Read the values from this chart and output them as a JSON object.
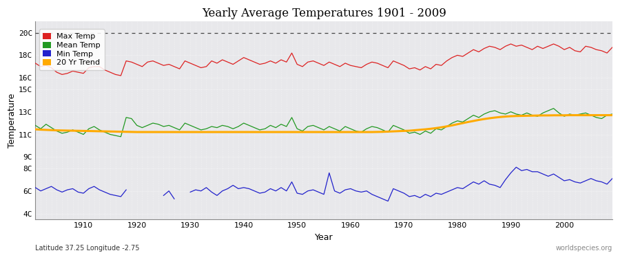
{
  "title": "Yearly Average Temperatures 1901 - 2009",
  "xlabel": "Year",
  "ylabel": "Temperature",
  "subtitle_left": "Latitude 37.25 Longitude -2.75",
  "subtitle_right": "worldspecies.org",
  "year_start": 1901,
  "year_end": 2009,
  "ytick_vals": [
    4,
    6,
    8,
    9,
    11,
    13,
    15,
    16,
    18,
    20
  ],
  "ytick_labels": [
    "4C",
    "6C",
    "8C",
    "9C",
    "11C",
    "13C",
    "15C",
    "16C",
    "18C",
    "20C"
  ],
  "ylim": [
    3.5,
    21.0
  ],
  "fig_bg_color": "#ffffff",
  "plot_bg_color": "#e8e8eb",
  "max_color": "#dd2222",
  "mean_color": "#229922",
  "min_color": "#2222cc",
  "trend_color": "#ffaa00",
  "legend_labels": [
    "Max Temp",
    "Mean Temp",
    "Min Temp",
    "20 Yr Trend"
  ],
  "legend_colors": [
    "#dd2222",
    "#229922",
    "#2222cc",
    "#ffaa00"
  ],
  "dotted_line_y": 20,
  "max_temps": [
    17.3,
    17.0,
    17.1,
    16.9,
    16.5,
    16.3,
    16.4,
    16.6,
    16.5,
    16.4,
    16.9,
    17.0,
    17.0,
    16.7,
    16.5,
    16.3,
    16.2,
    17.5,
    17.4,
    17.2,
    17.0,
    17.4,
    17.5,
    17.3,
    17.1,
    17.2,
    17.0,
    16.8,
    17.5,
    17.3,
    17.1,
    16.9,
    17.0,
    17.5,
    17.3,
    17.6,
    17.4,
    17.2,
    17.5,
    17.8,
    17.6,
    17.4,
    17.2,
    17.3,
    17.5,
    17.3,
    17.6,
    17.4,
    18.2,
    17.2,
    17.0,
    17.4,
    17.5,
    17.3,
    17.1,
    17.4,
    17.2,
    17.0,
    17.3,
    17.1,
    17.0,
    16.9,
    17.2,
    17.4,
    17.3,
    17.1,
    16.9,
    17.5,
    17.3,
    17.1,
    16.8,
    16.9,
    16.7,
    17.0,
    16.8,
    17.2,
    17.1,
    17.5,
    17.8,
    18.0,
    17.9,
    18.2,
    18.5,
    18.3,
    18.6,
    18.8,
    18.7,
    18.5,
    18.8,
    19.0,
    18.8,
    18.9,
    18.7,
    18.5,
    18.8,
    18.6,
    18.8,
    19.0,
    18.8,
    18.5,
    18.7,
    18.4,
    18.3,
    18.8,
    18.7,
    18.5,
    18.4,
    18.2,
    18.7
  ],
  "mean_temps": [
    11.8,
    11.5,
    11.9,
    11.6,
    11.3,
    11.1,
    11.2,
    11.4,
    11.2,
    11.0,
    11.5,
    11.7,
    11.4,
    11.2,
    11.0,
    10.9,
    10.8,
    12.5,
    12.4,
    11.8,
    11.6,
    11.8,
    12.0,
    11.9,
    11.7,
    11.8,
    11.6,
    11.4,
    12.0,
    11.8,
    11.6,
    11.4,
    11.5,
    11.7,
    11.6,
    11.8,
    11.7,
    11.5,
    11.7,
    12.0,
    11.8,
    11.6,
    11.4,
    11.5,
    11.8,
    11.6,
    11.9,
    11.7,
    12.5,
    11.5,
    11.3,
    11.7,
    11.8,
    11.6,
    11.4,
    11.7,
    11.5,
    11.3,
    11.7,
    11.5,
    11.3,
    11.2,
    11.5,
    11.7,
    11.6,
    11.4,
    11.2,
    11.8,
    11.6,
    11.4,
    11.1,
    11.2,
    11.0,
    11.3,
    11.1,
    11.5,
    11.4,
    11.7,
    12.0,
    12.2,
    12.1,
    12.4,
    12.7,
    12.5,
    12.8,
    13.0,
    13.1,
    12.9,
    12.8,
    13.0,
    12.8,
    12.7,
    12.9,
    12.7,
    12.6,
    12.9,
    13.1,
    13.3,
    12.9,
    12.6,
    12.8,
    12.7,
    12.8,
    12.9,
    12.7,
    12.5,
    12.4,
    12.7,
    12.8
  ],
  "min_temps_raw": [
    6.3,
    6.0,
    6.2,
    6.4,
    6.1,
    5.9,
    6.1,
    6.2,
    5.9,
    5.8,
    6.2,
    6.4,
    6.1,
    5.9,
    5.7,
    5.6,
    5.5,
    6.1,
    -999,
    -999,
    -999,
    -999,
    -999,
    -999,
    5.6,
    6.0,
    5.3,
    -999,
    -999,
    5.9,
    6.1,
    6.0,
    6.3,
    5.9,
    5.6,
    6.0,
    6.2,
    6.5,
    6.2,
    6.3,
    6.2,
    6.0,
    5.8,
    5.9,
    6.2,
    6.0,
    6.3,
    6.0,
    6.8,
    5.8,
    5.7,
    6.0,
    6.1,
    5.9,
    5.7,
    7.6,
    6.0,
    5.8,
    6.1,
    6.2,
    6.0,
    5.9,
    6.0,
    5.7,
    5.5,
    5.3,
    5.1,
    6.2,
    6.0,
    5.8,
    5.5,
    5.6,
    5.4,
    5.7,
    5.5,
    5.8,
    5.7,
    5.9,
    6.1,
    6.3,
    6.2,
    6.5,
    6.8,
    6.6,
    6.9,
    6.6,
    6.5,
    6.3,
    7.0,
    7.6,
    8.1,
    7.8,
    7.9,
    7.7,
    7.7,
    7.5,
    7.3,
    7.5,
    7.2,
    6.9,
    7.0,
    6.8,
    6.7,
    6.9,
    7.1,
    6.9,
    6.8,
    6.6,
    7.1
  ],
  "trend_temps": [
    11.45,
    11.42,
    11.4,
    11.38,
    11.36,
    11.35,
    11.34,
    11.33,
    11.32,
    11.31,
    11.3,
    11.29,
    11.28,
    11.27,
    11.26,
    11.25,
    11.24,
    11.23,
    11.22,
    11.21,
    11.21,
    11.21,
    11.21,
    11.21,
    11.21,
    11.21,
    11.21,
    11.21,
    11.21,
    11.21,
    11.21,
    11.21,
    11.21,
    11.21,
    11.21,
    11.21,
    11.21,
    11.21,
    11.21,
    11.21,
    11.21,
    11.21,
    11.21,
    11.21,
    11.21,
    11.21,
    11.21,
    11.21,
    11.21,
    11.21,
    11.21,
    11.21,
    11.21,
    11.21,
    11.21,
    11.21,
    11.21,
    11.21,
    11.21,
    11.21,
    11.21,
    11.21,
    11.21,
    11.21,
    11.22,
    11.23,
    11.25,
    11.27,
    11.29,
    11.31,
    11.33,
    11.37,
    11.41,
    11.45,
    11.5,
    11.56,
    11.63,
    11.71,
    11.8,
    11.9,
    12.0,
    12.1,
    12.19,
    12.28,
    12.36,
    12.43,
    12.49,
    12.54,
    12.58,
    12.61,
    12.63,
    12.64,
    12.65,
    12.66,
    12.67,
    12.68,
    12.68,
    12.69,
    12.69,
    12.69,
    12.7,
    12.7,
    12.7,
    12.7,
    12.7,
    12.7,
    12.7,
    12.7,
    12.7
  ]
}
